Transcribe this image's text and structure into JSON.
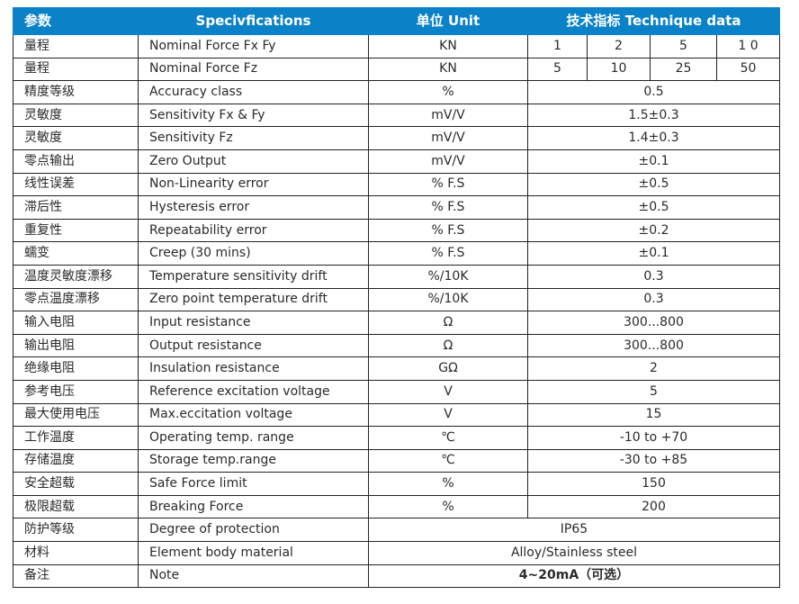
{
  "header": {
    "param": "参数",
    "spec": "Specivfications",
    "unit": "单位  Unit",
    "data": "技术指标     Technique data"
  },
  "rows": [
    {
      "cn": "量程",
      "en": "Nominal Force Fx Fy",
      "unit": "KN",
      "values": [
        "1",
        "2",
        "5",
        "1 0"
      ]
    },
    {
      "cn": "量程",
      "en": "Nominal Force Fz",
      "unit": "KN",
      "values": [
        "5",
        "10",
        "25",
        "50"
      ]
    },
    {
      "cn": "精度等级",
      "en": "Accuracy class",
      "unit": "%",
      "value": "0.5"
    },
    {
      "cn": "灵敏度",
      "en": "Sensitivity Fx & Fy",
      "unit": "mV/V",
      "value": "1.5±0.3"
    },
    {
      "cn": "灵敏度",
      "en": "Sensitivity Fz",
      "unit": "mV/V",
      "value": "1.4±0.3"
    },
    {
      "cn": "零点输出",
      "en": "Zero Output",
      "unit": "mV/V",
      "value": "±0.1"
    },
    {
      "cn": "线性误差",
      "en": "Non-Linearity error",
      "unit": "% F.S",
      "value": "±0.5"
    },
    {
      "cn": "滞后性",
      "en": "Hysteresis error",
      "unit": "% F.S",
      "value": "±0.5"
    },
    {
      "cn": "重复性",
      "en": "Repeatability error",
      "unit": "% F.S",
      "value": "±0.2"
    },
    {
      "cn": "蠕变",
      "en": "Creep (30 mins)",
      "unit": "% F.S",
      "value": "±0.1"
    },
    {
      "cn": "温度灵敏度漂移",
      "en": "Temperature sensitivity drift",
      "unit": "%/10K",
      "value": "0.3"
    },
    {
      "cn": "零点温度漂移",
      "en": "Zero point temperature drift",
      "unit": "%/10K",
      "value": "0.3"
    },
    {
      "cn": "输入电阻",
      "en": "Input resistance",
      "unit": "Ω",
      "value": "300...800"
    },
    {
      "cn": "输出电阻",
      "en": "Output resistance",
      "unit": "Ω",
      "value": "300...800"
    },
    {
      "cn": "绝缘电阻",
      "en": "Insulation resistance",
      "unit": "GΩ",
      "value": "2"
    },
    {
      "cn": "参考电压",
      "en": "Reference excitation voltage",
      "unit": "V",
      "value": "5"
    },
    {
      "cn": "最大使用电压",
      "en": "Max.eccitation voltage",
      "unit": "V",
      "value": "15"
    },
    {
      "cn": "工作温度",
      "en": "Operating temp. range",
      "unit": "℃",
      "value": "-10 to +70"
    },
    {
      "cn": "存储温度",
      "en": "Storage temp.range",
      "unit": "℃",
      "value": "-30 to +85"
    },
    {
      "cn": "安全超载",
      "en": "Safe Force limit",
      "unit": "%",
      "value": "150"
    },
    {
      "cn": "极限超载",
      "en": "Breaking Force",
      "unit": "%",
      "value": "200"
    },
    {
      "cn": "防护等级",
      "en": "Degree of protection",
      "value": "IP65"
    },
    {
      "cn": "材料",
      "en": "Element body material",
      "value": "Alloy/Stainless steel"
    },
    {
      "cn": "备注",
      "en": "Note",
      "value": "4~20mA（可选）"
    }
  ]
}
